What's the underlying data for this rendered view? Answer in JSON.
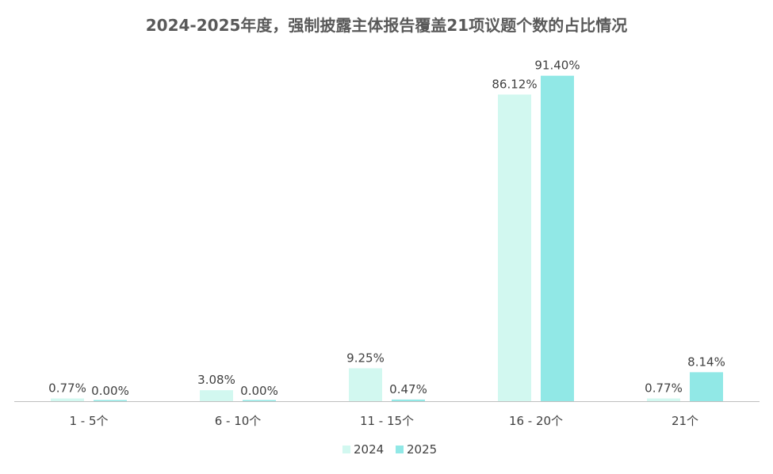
{
  "chart_data": {
    "type": "bar",
    "title": "2024-2025年度，强制披露主体报告覆盖21项议题个数的占比情况",
    "categories": [
      "1 - 5个",
      "6 - 10个",
      "11 - 15个",
      "16 - 20个",
      "21个"
    ],
    "series": [
      {
        "name": "2024",
        "values": [
          0.77,
          3.08,
          9.25,
          86.12,
          0.77
        ],
        "labels": [
          "0.77%",
          "3.08%",
          "9.25%",
          "86.12%",
          "0.77%"
        ],
        "color": "#d2f8f0"
      },
      {
        "name": "2025",
        "values": [
          0.0,
          0.0,
          0.47,
          91.4,
          8.14
        ],
        "labels": [
          "0.00%",
          "0.00%",
          "0.47%",
          "91.40%",
          "8.14%"
        ],
        "color": "#91e8e6"
      }
    ],
    "ylim": [
      0,
      100
    ],
    "grid": false,
    "legend": "bottom",
    "axis_color": "#bfbfbf"
  }
}
